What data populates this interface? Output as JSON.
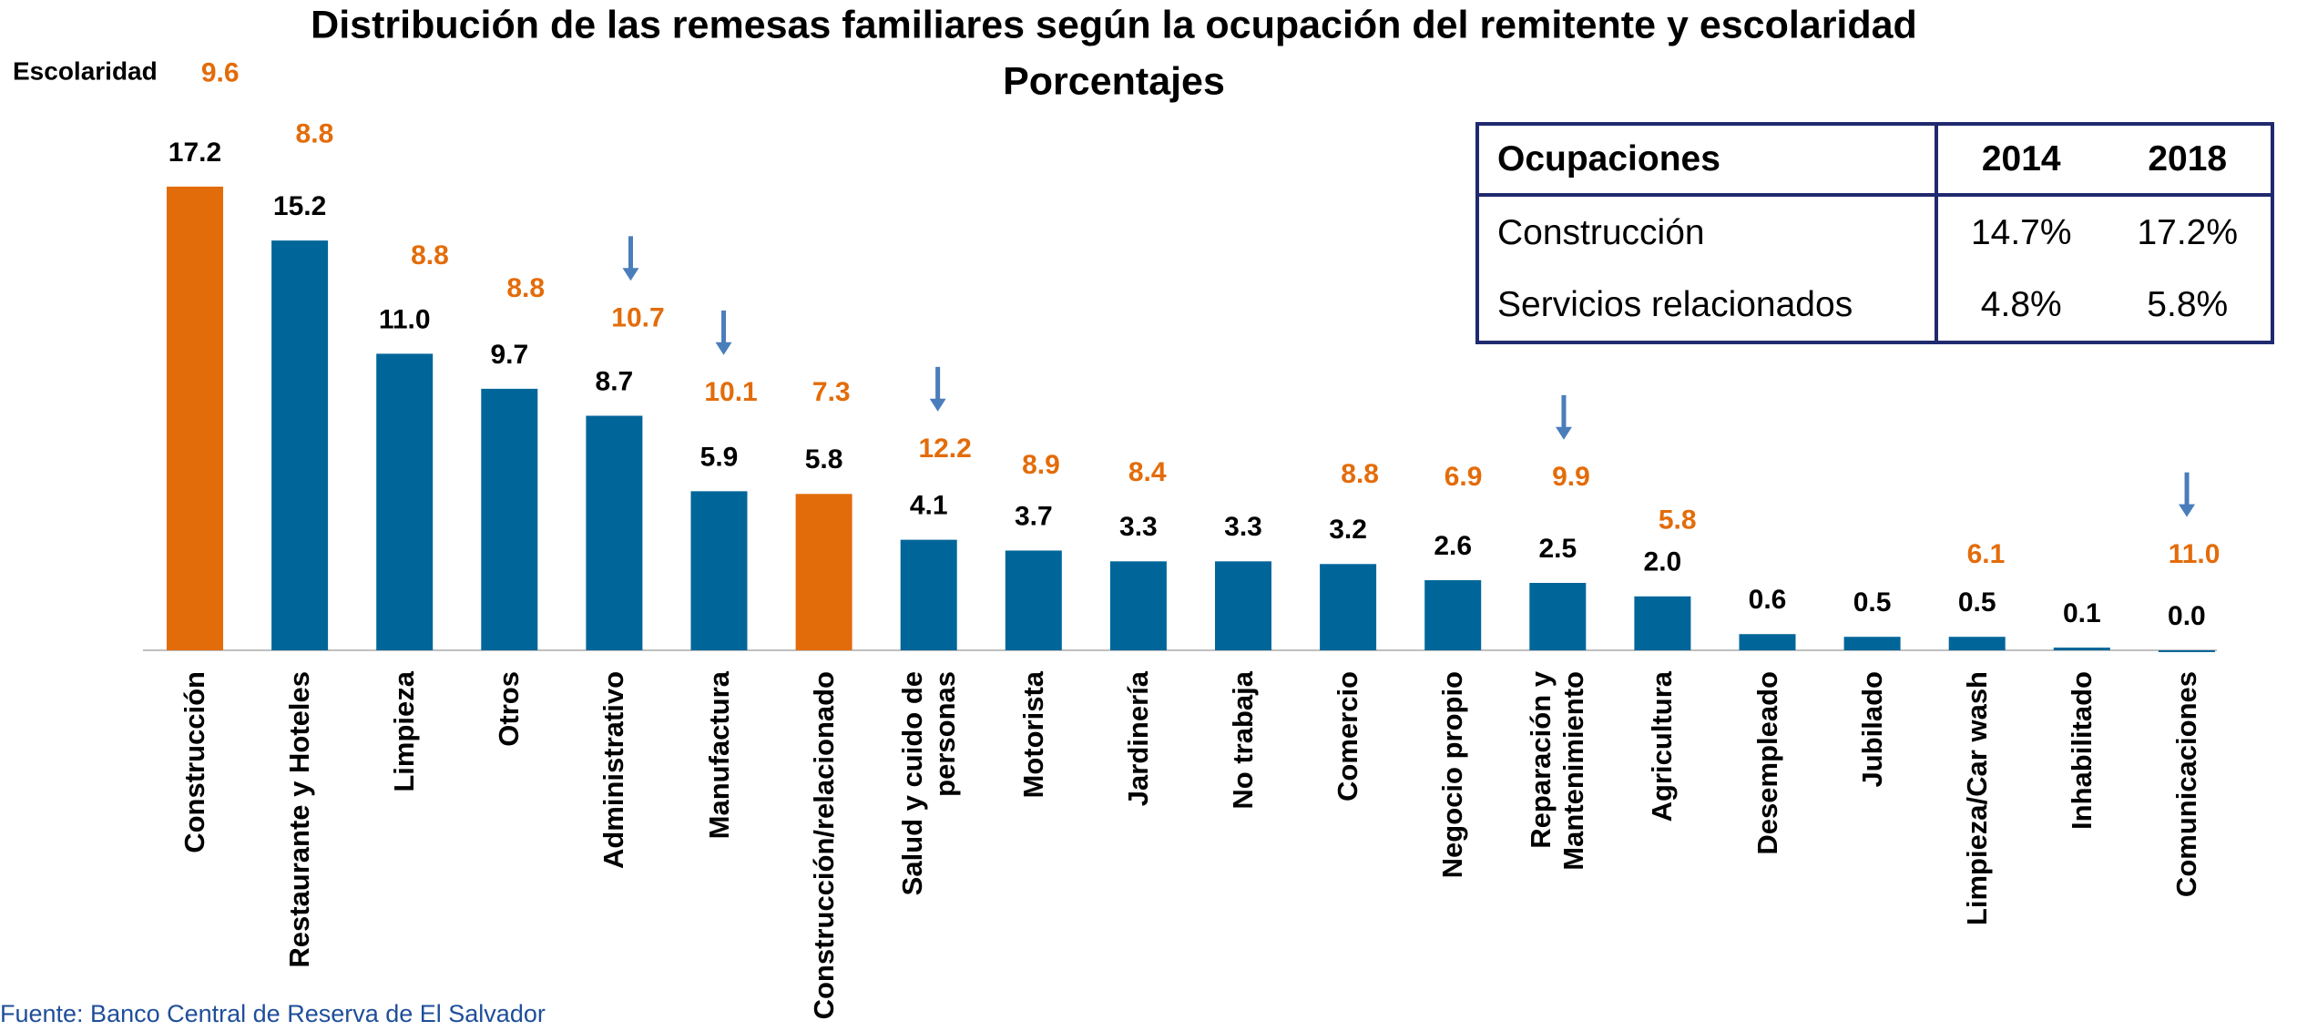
{
  "chart_data": {
    "type": "bar",
    "title": "Distribución de las remesas familiares según la ocupación del remitente y escolaridad",
    "subtitle": "Porcentajes",
    "categories": [
      "Construcción",
      "Restaurante y Hoteles",
      "Limpieza",
      "Otros",
      "Administrativo",
      "Manufactura",
      "Construcción/relacionado",
      "Salud y cuido de\npersonas",
      "Motorista",
      "Jardinería",
      "No trabaja",
      "Comercio",
      "Negocio propio",
      "Reparación y\nMantenimiento",
      "Agricultura",
      "Desempleado",
      "Jubilado",
      "Limpieza/Car wash",
      "Inhabilitado",
      "Comunicaciones"
    ],
    "values": [
      17.2,
      15.2,
      11.0,
      9.7,
      8.7,
      5.9,
      5.8,
      4.1,
      3.7,
      3.3,
      3.3,
      3.2,
      2.6,
      2.5,
      2.0,
      0.6,
      0.5,
      0.5,
      0.1,
      0.0
    ],
    "value_labels": [
      "17.2",
      "15.2",
      "11.0",
      "9.7",
      "8.7",
      "5.9",
      "5.8",
      "4.1",
      "3.7",
      "3.3",
      "3.3",
      "3.2",
      "2.6",
      "2.5",
      "2.0",
      "0.6",
      "0.5",
      "0.5",
      "0.1",
      "0.0"
    ],
    "colors": [
      "#e36c0a",
      "#006699",
      "#006699",
      "#006699",
      "#006699",
      "#006699",
      "#e36c0a",
      "#006699",
      "#006699",
      "#006699",
      "#006699",
      "#006699",
      "#006699",
      "#006699",
      "#006699",
      "#006699",
      "#006699",
      "#006699",
      "#006699",
      "#006699"
    ],
    "escolaridad": {
      "label": "Escolaridad",
      "color": "#e36c0a",
      "values": [
        9.6,
        8.8,
        8.8,
        8.8,
        10.7,
        10.1,
        7.3,
        12.2,
        8.9,
        8.4,
        null,
        8.8,
        6.9,
        9.9,
        5.8,
        null,
        null,
        6.1,
        null,
        11.0
      ],
      "value_labels": [
        "9.6",
        "8.8",
        "8.8",
        "8.8",
        "10.7",
        "10.1",
        "7.3",
        "12.2",
        "8.9",
        "8.4",
        null,
        "8.8",
        "6.9",
        "9.9",
        "5.8",
        null,
        null,
        "6.1",
        null,
        "11.0"
      ]
    },
    "arrows": [
      false,
      false,
      false,
      false,
      true,
      true,
      false,
      true,
      false,
      false,
      false,
      false,
      false,
      true,
      false,
      false,
      false,
      false,
      false,
      true
    ],
    "arrow_color": "#4a7ebb",
    "table": {
      "header": [
        "Ocupaciones",
        "2014",
        "2018"
      ],
      "rows": [
        [
          "Construcción",
          "14.7%",
          "17.2%"
        ],
        [
          "Servicios relacionados",
          "4.8%",
          "5.8%"
        ]
      ]
    },
    "source": "Fuente: Banco Central de Reserva de El Salvador"
  }
}
